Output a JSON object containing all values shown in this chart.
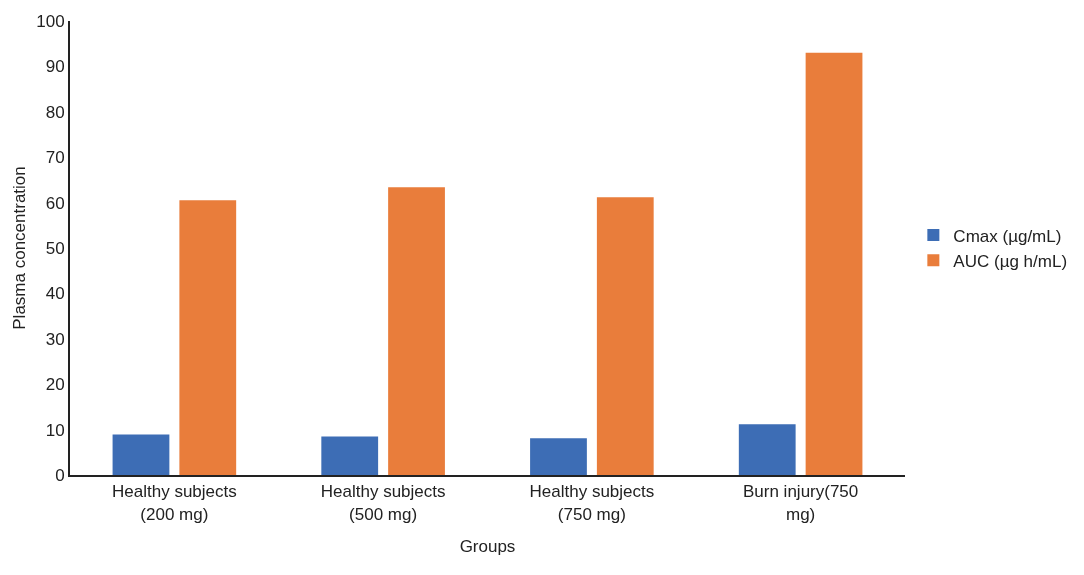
{
  "chart_data": {
    "type": "bar",
    "xlabel": "Groups",
    "ylabel": "Plasma concentration",
    "categories": [
      "Healthy subjects (200 mg)",
      "Healthy subjects (500 mg)",
      "Healthy subjects (750 mg)",
      "Burn injury(750 mg)"
    ],
    "series": [
      {
        "name": "Cmax (µg/mL)",
        "color": "#3d6db5",
        "values": [
          8.9,
          8.5,
          8.1,
          11.2
        ]
      },
      {
        "name": "AUC (µg h/mL)",
        "color": "#e97d3b",
        "values": [
          60.5,
          63.4,
          61.2,
          93
        ]
      }
    ],
    "ylim": [
      0,
      100
    ],
    "yticks": [
      0,
      10,
      20,
      30,
      40,
      50,
      60,
      70,
      80,
      90,
      100
    ],
    "grid": false,
    "legend": "right"
  }
}
